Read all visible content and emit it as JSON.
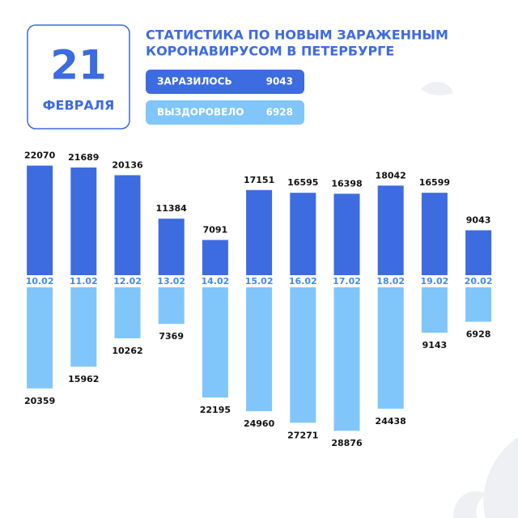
{
  "date": {
    "day": "21",
    "month": "ФЕВРАЛЯ"
  },
  "chart_data": {
    "type": "diverging-bar",
    "title": [
      "СТАТИСТИКА ПО НОВЫМ ЗАРАЖЕННЫМ",
      "КОРОНАВИРУСОМ В ПЕТЕРБУРГЕ"
    ],
    "categories": [
      "10.02",
      "11.02",
      "12.02",
      "13.02",
      "14.02",
      "15.02",
      "16.02",
      "17.02",
      "18.02",
      "19.02",
      "20.02"
    ],
    "series": [
      {
        "name": "ЗАРАЗИЛОСЬ",
        "color": "#3d6be0",
        "values": [
          22070,
          21689,
          20136,
          11384,
          7091,
          17151,
          16595,
          16398,
          18042,
          16599,
          9043
        ]
      },
      {
        "name": "ВЫЗДОРОВЕЛО",
        "color": "#80c6fb",
        "values": [
          20359,
          15962,
          10262,
          7369,
          22195,
          24960,
          27271,
          28876,
          24438,
          9143,
          6928
        ]
      }
    ]
  }
}
